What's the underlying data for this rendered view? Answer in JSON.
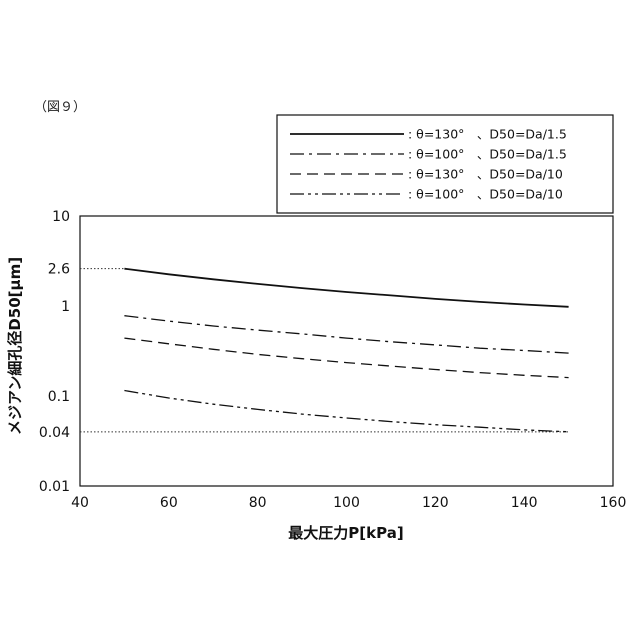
{
  "figure_label": "（図９）",
  "chart_data": {
    "type": "line",
    "xlabel": "最大圧力P[kPa]",
    "ylabel": "メジアン細孔径D50[μm]",
    "xlim": [
      40,
      160
    ],
    "ylim": [
      0.01,
      10
    ],
    "y_scale": "log",
    "x_ticks": [
      "40",
      "60",
      "80",
      "100",
      "120",
      "140",
      "160"
    ],
    "y_ticks": [
      {
        "value": 10,
        "label": "10"
      },
      {
        "value": 2.6,
        "label": "2.6"
      },
      {
        "value": 1,
        "label": "1"
      },
      {
        "value": 0.1,
        "label": "0.1"
      },
      {
        "value": 0.04,
        "label": "0.04"
      },
      {
        "value": 0.01,
        "label": "0.01"
      }
    ],
    "reference_lines": [
      {
        "y": 2.6,
        "x_from": 40,
        "x_to": 50,
        "style": "dotted"
      },
      {
        "y": 0.04,
        "x_from": 40,
        "x_to": 150,
        "style": "dotted"
      }
    ],
    "legend_position": "top",
    "series": [
      {
        "name": ": θ=130°　、D50=Da/1.5",
        "dash": "solid",
        "x": [
          50,
          60,
          70,
          80,
          90,
          100,
          110,
          120,
          130,
          140,
          150
        ],
        "y": [
          2.6,
          2.25,
          1.98,
          1.76,
          1.58,
          1.43,
          1.31,
          1.2,
          1.11,
          1.04,
          0.98
        ]
      },
      {
        "name": ": θ=100°　、D50=Da/1.5",
        "dash": "dashdot",
        "x": [
          50,
          60,
          70,
          80,
          90,
          100,
          110,
          120,
          130,
          140,
          150
        ],
        "y": [
          0.78,
          0.68,
          0.6,
          0.54,
          0.49,
          0.44,
          0.4,
          0.37,
          0.34,
          0.32,
          0.3
        ]
      },
      {
        "name": ": θ=130°　、D50=Da/10",
        "dash": "dashed",
        "x": [
          50,
          60,
          70,
          80,
          90,
          100,
          110,
          120,
          130,
          140,
          150
        ],
        "y": [
          0.44,
          0.38,
          0.33,
          0.29,
          0.26,
          0.235,
          0.215,
          0.197,
          0.182,
          0.17,
          0.16
        ]
      },
      {
        "name": ": θ=100°　、D50=Da/10",
        "dash": "dashdotdot",
        "x": [
          50,
          60,
          70,
          80,
          90,
          100,
          110,
          120,
          130,
          140,
          150
        ],
        "y": [
          0.115,
          0.095,
          0.081,
          0.071,
          0.063,
          0.057,
          0.052,
          0.048,
          0.045,
          0.042,
          0.04
        ]
      }
    ]
  }
}
